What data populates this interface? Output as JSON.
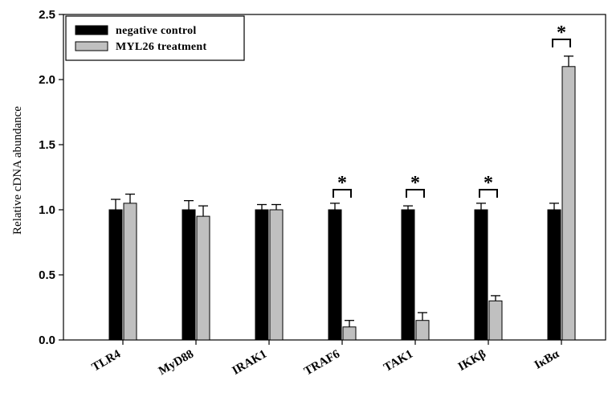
{
  "chart_data": {
    "type": "bar",
    "title": "",
    "xlabel": "",
    "ylabel": "Relative cDNA abundance",
    "ylim": [
      0,
      2.5
    ],
    "yticks": [
      "0.0",
      "0.5",
      "1.0",
      "1.5",
      "2.0",
      "2.5"
    ],
    "categories": [
      "TLR4",
      "MyD88",
      "IRAK1",
      "TRAF6",
      "TAK1",
      "IKKβ",
      "IκBα"
    ],
    "series": [
      {
        "name": "negative control",
        "color": "#000000",
        "values": [
          1.0,
          1.0,
          1.0,
          1.0,
          1.0,
          1.0,
          1.0
        ],
        "errors": [
          0.08,
          0.07,
          0.04,
          0.05,
          0.03,
          0.05,
          0.05
        ]
      },
      {
        "name": "MYL26 treatment",
        "color": "#c0c0c0",
        "values": [
          1.05,
          0.95,
          1.0,
          0.1,
          0.15,
          0.3,
          2.1
        ],
        "errors": [
          0.07,
          0.08,
          0.04,
          0.05,
          0.06,
          0.04,
          0.08
        ]
      }
    ],
    "annotations": [
      {
        "category": "TRAF6",
        "text": "*"
      },
      {
        "category": "TAK1",
        "text": "*"
      },
      {
        "category": "IKKβ",
        "text": "*"
      },
      {
        "category": "IκBα",
        "text": "*"
      }
    ],
    "legend_position": "top-left",
    "grid": false
  }
}
